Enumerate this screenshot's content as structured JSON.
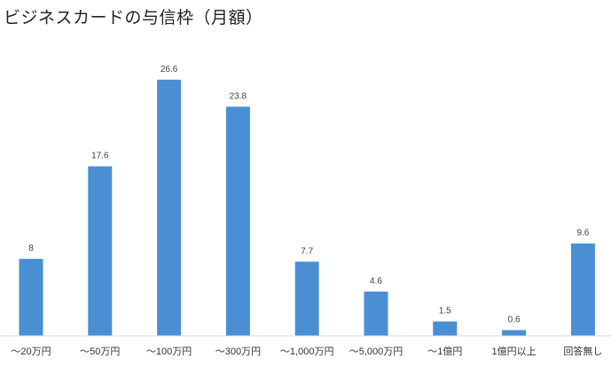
{
  "chart_data": {
    "type": "bar",
    "title": "ビジネスカードの与信枠（月額）",
    "categories": [
      "～20万円",
      "～50万円",
      "～100万円",
      "～300万円",
      "～1,000万円",
      "～5,000万円",
      "～1億円",
      "1億円以上",
      "回答無し"
    ],
    "values": [
      8,
      17.6,
      26.6,
      23.8,
      7.7,
      4.6,
      1.5,
      0.6,
      9.6
    ],
    "ylim": [
      0,
      30
    ],
    "grid": false,
    "legend": "none",
    "data_labels": true,
    "bar_color": "#4a8fd3",
    "axis_color": "#d9d9d9"
  }
}
